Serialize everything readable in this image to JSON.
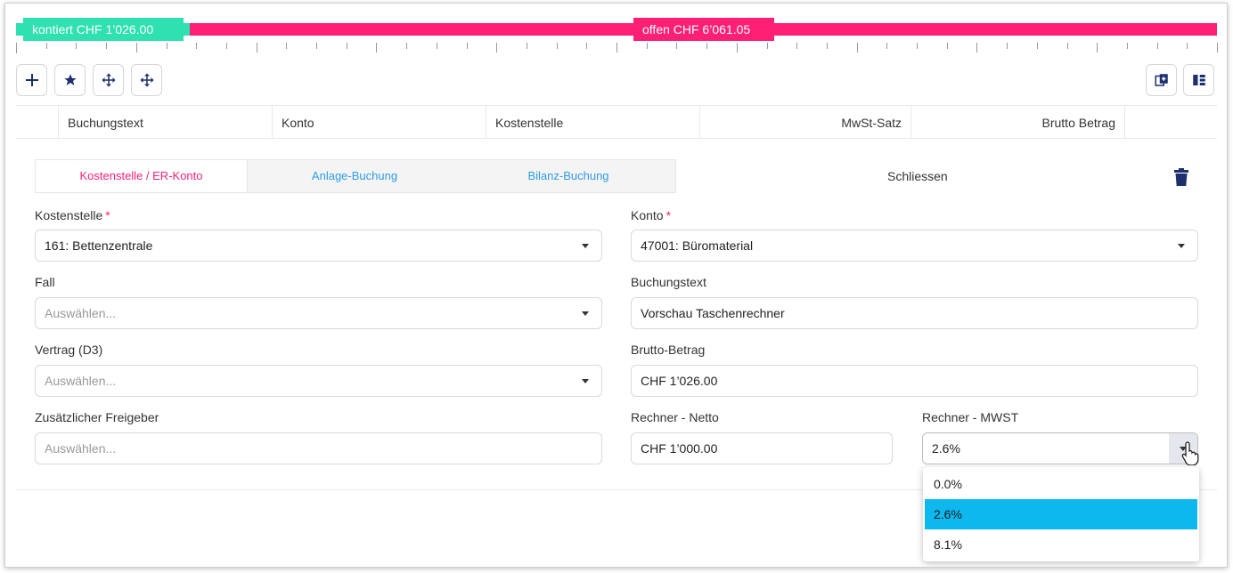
{
  "progress": {
    "booked_label": "kontiert CHF 1’026.00",
    "open_label": "offen CHF 6’061.05",
    "booked_fraction": 0.145,
    "colors": {
      "booked": "#2fe0b0",
      "open": "#ff1f75"
    }
  },
  "toolbar": {
    "left_icons": [
      "plus-icon",
      "star-icon",
      "move-icon",
      "move-icon"
    ],
    "right_icons": [
      "copy-icon",
      "columns-icon"
    ]
  },
  "table": {
    "columns": [
      "",
      "Buchungstext",
      "Konto",
      "Kostenstelle",
      "MwSt-Satz",
      "Brutto Betrag",
      ""
    ]
  },
  "editor": {
    "tabs": [
      {
        "label": "Kostenstelle / ER-Konto",
        "active": true
      },
      {
        "label": "Anlage-Buchung",
        "active": false
      },
      {
        "label": "Bilanz-Buchung",
        "active": false
      }
    ],
    "close_label": "Schliessen",
    "required_mark": "*",
    "fields": {
      "kostenstelle": {
        "label": "Kostenstelle",
        "value": "161: Bettenzentrale"
      },
      "konto": {
        "label": "Konto",
        "value": "47001: Büromaterial"
      },
      "fall": {
        "label": "Fall",
        "placeholder": "Auswählen..."
      },
      "buchungstext": {
        "label": "Buchungstext",
        "value": "Vorschau Taschenrechner"
      },
      "vertrag": {
        "label": "Vertrag (D3)",
        "placeholder": "Auswählen..."
      },
      "brutto": {
        "label": "Brutto-Betrag",
        "value": "CHF 1’026.00"
      },
      "freigeber": {
        "label": "Zusätzlicher Freigeber",
        "placeholder": "Auswählen..."
      },
      "netto": {
        "label": "Rechner - Netto",
        "value": "CHF 1’000.00"
      },
      "mwst": {
        "label": "Rechner - MWST",
        "value": "2.6%",
        "options": [
          "0.0%",
          "2.6%",
          "8.1%"
        ],
        "selected_index": 1
      }
    }
  },
  "colors": {
    "accent": "#ff1f75",
    "link": "#2d9ce8",
    "highlight": "#0cb8ee",
    "icon": "#1d2f6f"
  }
}
